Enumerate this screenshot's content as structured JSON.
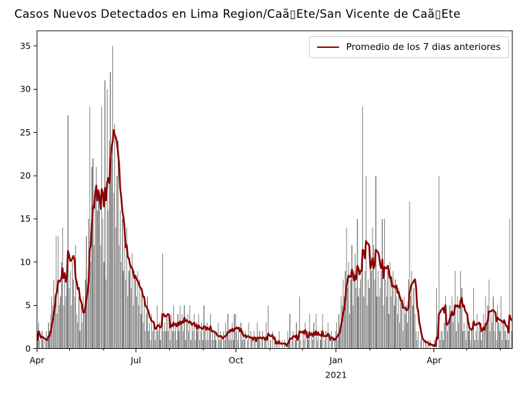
{
  "chart_data": {
    "type": "bar+line",
    "title": "Casos Nuevos Detectados en Lima Region/Caã▯Ete/San Vicente de Caã▯Ete",
    "legend_label": "Promedio de los 7 dias anteriores",
    "legend_position": "upper-right",
    "bar_color": "#808080",
    "line_color": "#8B0000",
    "axis_color": "#000000",
    "grid": "off",
    "ylim": [
      0,
      36.7
    ],
    "y_ticks": [
      0,
      5,
      10,
      15,
      20,
      25,
      30,
      35
    ],
    "x_major_ticks": [
      {
        "day": 0,
        "label": "Apr"
      },
      {
        "day": 91,
        "label": "Jul"
      },
      {
        "day": 183,
        "label": "Oct"
      },
      {
        "day": 275,
        "label": "Jan"
      },
      {
        "day": 365,
        "label": "Apr"
      }
    ],
    "x_minor_days": [
      30,
      61,
      122,
      153,
      214,
      244,
      306,
      334,
      395,
      426
    ],
    "year_annotation": {
      "day": 275,
      "label": "2021"
    },
    "line_rule": "trailing-7-day-average-of-daily-values",
    "daily_values": [
      1,
      3,
      1,
      0,
      2,
      1,
      0,
      1,
      2,
      1,
      3,
      2,
      4,
      6,
      5,
      8,
      6,
      13,
      4,
      13,
      5,
      6,
      10,
      14,
      5,
      8,
      6,
      9,
      27,
      7,
      9,
      5,
      10,
      8,
      6,
      12,
      4,
      3,
      6,
      2,
      5,
      3,
      6,
      4,
      8,
      13,
      6,
      15,
      28,
      10,
      21,
      22,
      12,
      18,
      21,
      16,
      18,
      16,
      12,
      28,
      15,
      10,
      31,
      8,
      30,
      16,
      24,
      32,
      22,
      35,
      18,
      26,
      14,
      20,
      24,
      12,
      16,
      10,
      15,
      9,
      12,
      8,
      14,
      6,
      9,
      10,
      7,
      11,
      5,
      9,
      8,
      6,
      9,
      5,
      8,
      4,
      7,
      3,
      6,
      2,
      4,
      6,
      2,
      3,
      1,
      4,
      2,
      3,
      1,
      2,
      5,
      2,
      3,
      1,
      4,
      11,
      2,
      3,
      2,
      4,
      2,
      3,
      1,
      4,
      2,
      5,
      2,
      3,
      1,
      4,
      2,
      5,
      3,
      4,
      2,
      5,
      1,
      3,
      4,
      2,
      5,
      1,
      3,
      2,
      4,
      1,
      3,
      2,
      4,
      1,
      2,
      3,
      1,
      5,
      2,
      1,
      3,
      1,
      2,
      4,
      1,
      2,
      1,
      2,
      1,
      0,
      3,
      1,
      2,
      1,
      0,
      2,
      1,
      3,
      2,
      4,
      1,
      2,
      1,
      3,
      1,
      4,
      4,
      2,
      1,
      2,
      0,
      3,
      1,
      2,
      1,
      2,
      0,
      1,
      3,
      0,
      2,
      1,
      0,
      2,
      1,
      0,
      3,
      1,
      2,
      0,
      1,
      2,
      0,
      1,
      3,
      0,
      5,
      0,
      1,
      0,
      2,
      0,
      1,
      0,
      1,
      0,
      2,
      0,
      0,
      1,
      0,
      1,
      0,
      0,
      2,
      1,
      4,
      0,
      1,
      2,
      0,
      1,
      3,
      0,
      2,
      6,
      1,
      0,
      2,
      1,
      3,
      0,
      2,
      1,
      4,
      0,
      2,
      1,
      3,
      0,
      4,
      1,
      2,
      0,
      1,
      2,
      4,
      0,
      1,
      2,
      0,
      3,
      1,
      0,
      2,
      1,
      0,
      1,
      2,
      3,
      1,
      4,
      2,
      6,
      5,
      8,
      6,
      9,
      14,
      7,
      10,
      4,
      8,
      12,
      5,
      9,
      11,
      7,
      15,
      6,
      7,
      8,
      9,
      28,
      6,
      9,
      20,
      5,
      8,
      7,
      10,
      9,
      14,
      12,
      8,
      20,
      6,
      9,
      6,
      7,
      9,
      15,
      5,
      15,
      8,
      6,
      9,
      4,
      10,
      6,
      7,
      9,
      5,
      8,
      6,
      4,
      7,
      3,
      6,
      5,
      2,
      6,
      4,
      5,
      3,
      8,
      17,
      6,
      9,
      5,
      7,
      4,
      2,
      1,
      2,
      0,
      1,
      2,
      0,
      1,
      0,
      1,
      0,
      1,
      0,
      1,
      0,
      0,
      0,
      1,
      0,
      7,
      0,
      20,
      1,
      2,
      2,
      1,
      3,
      6,
      4,
      2,
      3,
      5,
      4,
      6,
      3,
      5,
      9,
      2,
      6,
      3,
      5,
      9,
      7,
      2,
      3,
      2,
      1,
      4,
      2,
      3,
      1,
      2,
      3,
      7,
      1,
      2,
      4,
      1,
      3,
      2,
      1,
      2,
      4,
      2,
      6,
      3,
      5,
      8,
      2,
      4,
      3,
      6,
      2,
      4,
      1,
      5,
      3,
      2,
      6,
      1,
      3,
      3,
      2,
      1,
      2,
      1,
      15,
      0,
      2
    ]
  }
}
